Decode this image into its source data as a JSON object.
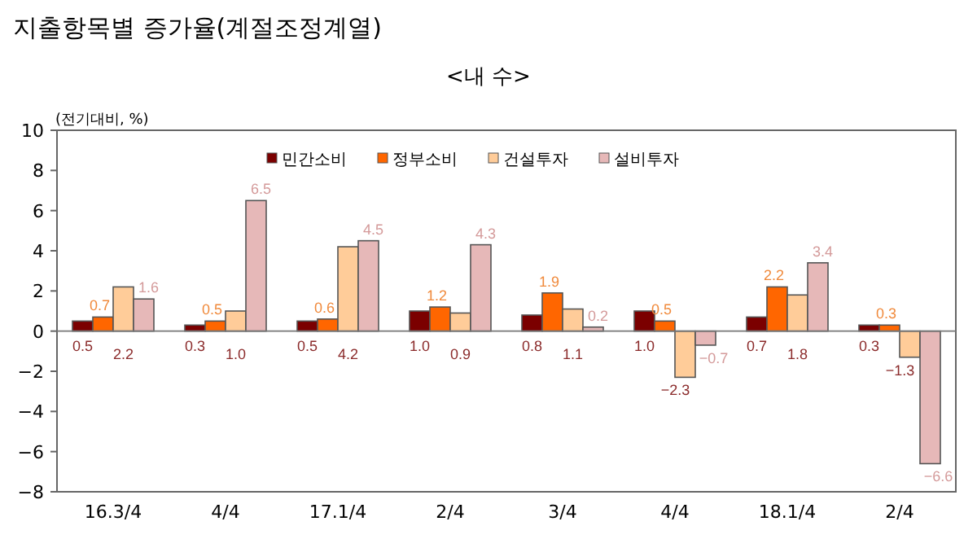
{
  "chart_data": {
    "type": "bar",
    "title": "지출항목별 증가율(계절조정계열)",
    "subtitle": "<내 수>",
    "ylabel": "(전기대비, %)",
    "categories": [
      "16.3/4",
      "4/4",
      "17.1/4",
      "2/4",
      "3/4",
      "4/4",
      "18.1/4",
      "2/4"
    ],
    "series": [
      {
        "name": "민간소비",
        "color": "#7b0000",
        "values": [
          0.5,
          0.3,
          0.5,
          1.0,
          0.8,
          1.0,
          0.7,
          0.3
        ],
        "value_labels": [
          "0.5",
          "0.3",
          "0.5",
          "1.0",
          "0.8",
          "1.0",
          "0.7",
          "0.3"
        ]
      },
      {
        "name": "정부소비",
        "color": "#ff6600",
        "values": [
          0.7,
          0.5,
          0.6,
          1.2,
          1.9,
          0.5,
          2.2,
          0.3
        ],
        "value_labels": [
          "0.7",
          "0.5",
          "0.6",
          "1.2",
          "1.9",
          "0.5",
          "2.2",
          "0.3"
        ]
      },
      {
        "name": "건설투자",
        "color": "#ffcc99",
        "values": [
          2.2,
          1.0,
          4.2,
          0.9,
          1.1,
          -2.3,
          1.8,
          -1.3
        ],
        "value_labels": [
          "2.2",
          "1.0",
          "4.2",
          "0.9",
          "1.1",
          "−2.3",
          "1.8",
          "−1.3"
        ]
      },
      {
        "name": "설비투자",
        "color": "#e6b8b8",
        "values": [
          1.6,
          6.5,
          4.5,
          4.3,
          0.2,
          -0.7,
          3.4,
          -6.6
        ],
        "value_labels": [
          "1.6",
          "6.5",
          "4.5",
          "4.3",
          "0.2",
          "−0.7",
          "3.4",
          "−6.6"
        ]
      }
    ],
    "ylim": [
      -8,
      10
    ],
    "yticks": [
      -8,
      -6,
      -4,
      -2,
      0,
      2,
      4,
      6,
      8,
      10
    ],
    "legend": "top"
  }
}
